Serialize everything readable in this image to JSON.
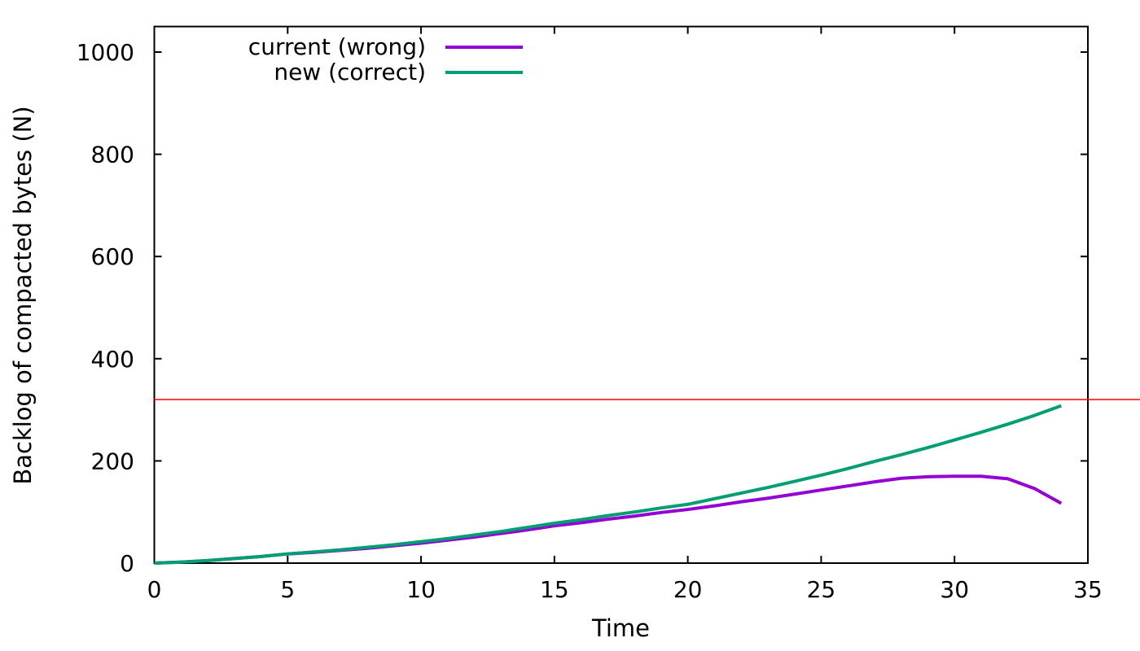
{
  "page": {
    "background": "#ffffff"
  },
  "chart_data": {
    "type": "line",
    "title": "",
    "xlabel": "Time",
    "ylabel": "Backlog of compacted bytes (N)",
    "xlim": [
      0,
      35
    ],
    "ylim": [
      0,
      1050
    ],
    "x_ticks": [
      0,
      5,
      10,
      15,
      20,
      25,
      30,
      35
    ],
    "y_ticks": [
      0,
      200,
      400,
      600,
      800,
      1000
    ],
    "grid": false,
    "legend_position": "inside-top-left",
    "axis_color": "#000000",
    "x": [
      0,
      1,
      2,
      3,
      4,
      5,
      6,
      7,
      8,
      9,
      10,
      11,
      12,
      13,
      14,
      15,
      16,
      17,
      18,
      19,
      20,
      21,
      22,
      23,
      24,
      25,
      26,
      27,
      28,
      29,
      30,
      31,
      32,
      33,
      34
    ],
    "series": [
      {
        "name": "current (wrong)",
        "color": "#9400d3",
        "values": [
          0,
          2,
          5,
          9,
          13,
          18,
          21,
          25,
          29,
          34,
          39,
          45,
          51,
          58,
          65,
          73,
          79,
          86,
          92,
          99,
          105,
          112,
          120,
          127,
          135,
          143,
          151,
          159,
          166,
          169,
          170,
          170,
          165,
          146,
          117
        ]
      },
      {
        "name": "new (correct)",
        "color": "#009e73",
        "values": [
          0,
          2,
          5,
          9,
          13,
          18,
          22,
          26,
          31,
          36,
          42,
          48,
          55,
          62,
          70,
          78,
          85,
          93,
          100,
          108,
          115,
          126,
          137,
          148,
          160,
          172,
          185,
          199,
          212,
          226,
          241,
          256,
          272,
          289,
          308
        ]
      }
    ],
    "threshold_line": {
      "y": 320,
      "color": "#ff0000"
    }
  }
}
